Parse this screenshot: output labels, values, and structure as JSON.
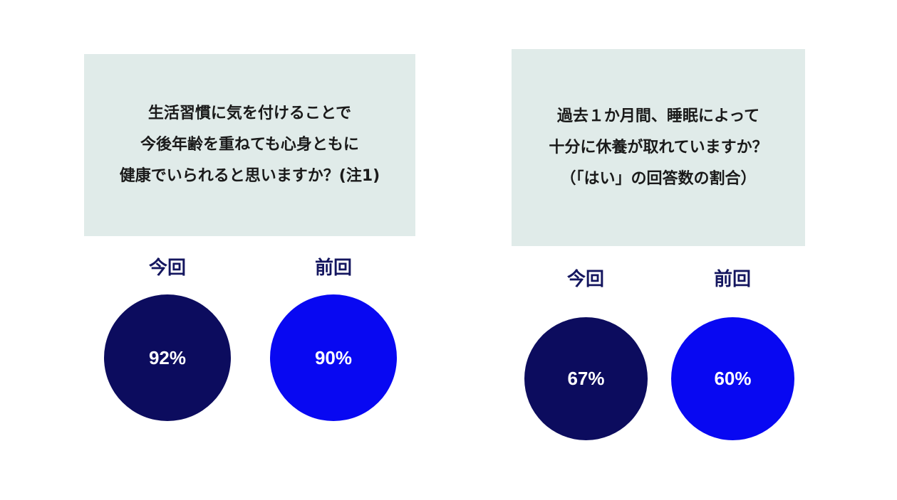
{
  "colors": {
    "current": "#0c0c5e",
    "previous": "#0808f2",
    "box_background": "#e0ebe9",
    "label_text": "#14165f"
  },
  "panels": [
    {
      "question_lines": [
        "生活習慣に気を付けることで",
        "今後年齢を重ねても心身ともに",
        "健康でいられると思いますか？(注1)"
      ],
      "current": {
        "label": "今回",
        "value": "92%",
        "percent": 92
      },
      "previous": {
        "label": "前回",
        "value": "90%",
        "percent": 90
      }
    },
    {
      "question_lines": [
        "過去１か月間、睡眠によって",
        "十分に休養が取れていますか？",
        "（「はい」の回答数の割合）"
      ],
      "current": {
        "label": "今回",
        "value": "67%",
        "percent": 67
      },
      "previous": {
        "label": "前回",
        "value": "60%",
        "percent": 60
      }
    }
  ]
}
